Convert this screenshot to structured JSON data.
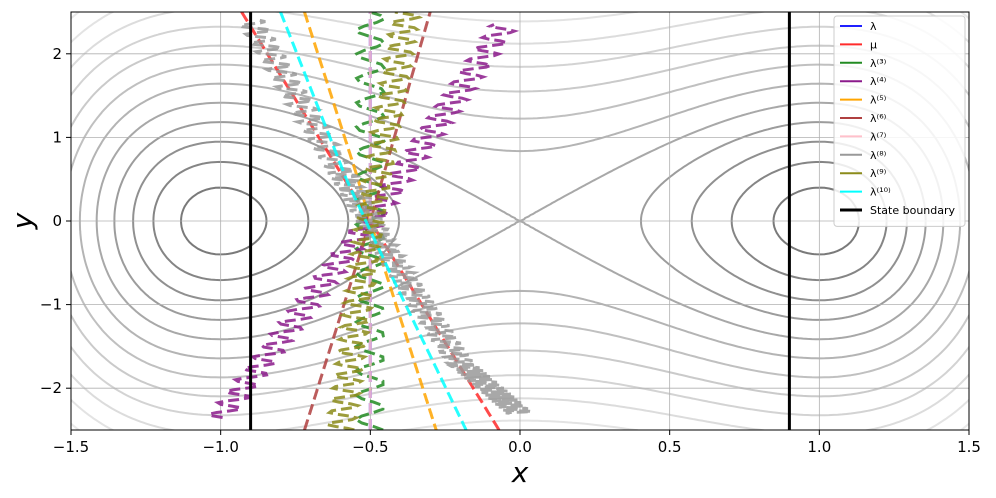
{
  "chart_data": {
    "type": "line",
    "title": "",
    "xlabel": "x",
    "ylabel": "y",
    "xlim": [
      -1.5,
      1.5
    ],
    "ylim": [
      -2.5,
      2.5
    ],
    "xticks": [
      -1.5,
      -1.0,
      -0.5,
      0.0,
      0.5,
      1.0,
      1.5
    ],
    "xtick_labels": [
      "−1.5",
      "−1.0",
      "−0.5",
      "0.0",
      "0.5",
      "1.0",
      "1.5"
    ],
    "yticks": [
      -2,
      -1,
      0,
      1,
      2
    ],
    "ytick_labels": [
      "−2",
      "−1",
      "0",
      "1",
      "2"
    ],
    "grid": true,
    "legend_position": "top-right",
    "background": {
      "kind": "contour",
      "description_levels": [
        0.08,
        0.25,
        0.45,
        0.7,
        1.0,
        1.35,
        1.75,
        2.2,
        2.7,
        3.25,
        3.85,
        4.5,
        5.2,
        5.95
      ],
      "minima": [
        [
          -1.0,
          0.0
        ],
        [
          1.0,
          0.0
        ]
      ],
      "saddle": [
        0.0,
        0.0
      ]
    },
    "state_boundaries": [
      -0.9,
      0.9
    ],
    "series": [
      {
        "name": "λ",
        "color": "#1f1fff",
        "style": "dashed",
        "points": [
          [
            -0.5,
            -2.5
          ],
          [
            -0.5,
            2.5
          ]
        ]
      },
      {
        "name": "μ",
        "color": "#ff2a2a",
        "style": "dashed",
        "points": [
          [
            -0.93,
            2.5
          ],
          [
            -0.07,
            -2.5
          ]
        ]
      },
      {
        "name": "λ⁽³⁾",
        "color": "#228b22",
        "style": "dashed",
        "wiggle": true,
        "points": [
          [
            -0.5,
            -2.5
          ],
          [
            -0.5,
            2.5
          ]
        ]
      },
      {
        "name": "λ⁽⁴⁾",
        "color": "#8b1a8b",
        "style": "dashed",
        "wiggle": true,
        "points": [
          [
            -1.0,
            -2.35
          ],
          [
            -0.5,
            0.0
          ],
          [
            -0.05,
            2.35
          ]
        ]
      },
      {
        "name": "λ⁽⁵⁾",
        "color": "#ffa500",
        "style": "dashed",
        "points": [
          [
            -0.72,
            2.5
          ],
          [
            -0.55,
            0.6
          ],
          [
            -0.45,
            -0.6
          ],
          [
            -0.28,
            -2.5
          ]
        ]
      },
      {
        "name": "λ⁽⁶⁾",
        "color": "#b04040",
        "style": "dashed",
        "points": [
          [
            -0.72,
            -2.5
          ],
          [
            -0.5,
            0.0
          ],
          [
            -0.3,
            2.5
          ]
        ]
      },
      {
        "name": "λ⁽⁷⁾",
        "color": "#ffc0cb",
        "style": "dashed",
        "points": [
          [
            -0.5,
            -2.5
          ],
          [
            -0.5,
            2.5
          ]
        ]
      },
      {
        "name": "λ⁽⁸⁾",
        "color": "#999999",
        "style": "dashed",
        "wiggle": true,
        "points": [
          [
            -0.9,
            2.4
          ],
          [
            -0.6,
            0.6
          ],
          [
            -0.42,
            -0.5
          ],
          [
            -0.2,
            -1.7
          ],
          [
            0.0,
            -2.3
          ]
        ]
      },
      {
        "name": "λ⁽⁹⁾",
        "color": "#8b8b1a",
        "style": "dashed",
        "wiggle": true,
        "points": [
          [
            -0.6,
            -2.5
          ],
          [
            -0.5,
            0.0
          ],
          [
            -0.38,
            2.5
          ]
        ]
      },
      {
        "name": "λ⁽¹⁰⁾",
        "color": "#00ffff",
        "style": "dashed",
        "points": [
          [
            -0.8,
            2.5
          ],
          [
            -0.58,
            0.5
          ],
          [
            -0.45,
            -0.5
          ],
          [
            -0.18,
            -2.5
          ]
        ]
      },
      {
        "name": "State boundary",
        "color": "#000000",
        "style": "solid",
        "points": []
      }
    ]
  }
}
